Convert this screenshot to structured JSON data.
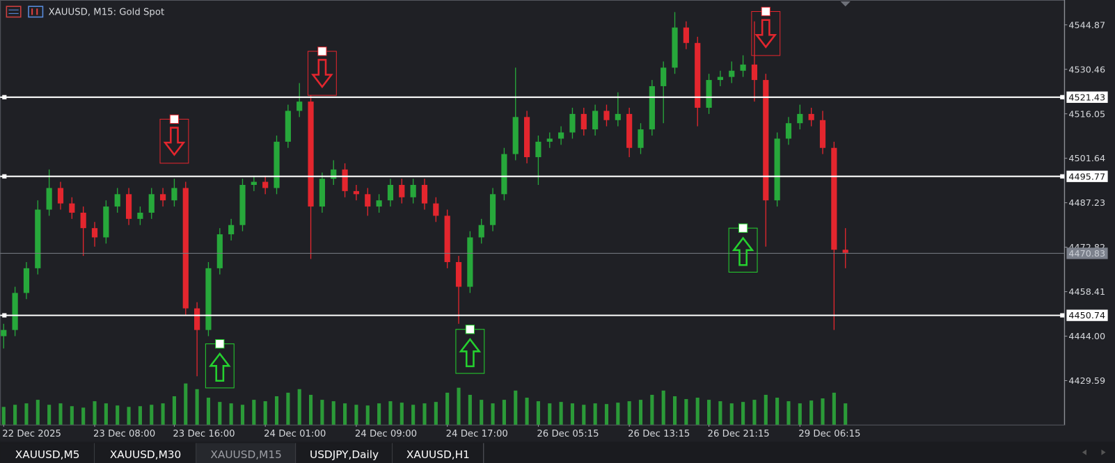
{
  "chart_data": {
    "type": "candlestick",
    "title": "XAUUSD, M15:  Gold Spot",
    "categories": [
      "22 Dec 2025",
      null,
      null,
      null,
      null,
      null,
      null,
      null,
      "23 Dec 08:00",
      null,
      null,
      null,
      null,
      null,
      null,
      "23 Dec 16:00",
      null,
      null,
      null,
      null,
      null,
      null,
      null,
      "24 Dec 01:00",
      null,
      null,
      null,
      null,
      null,
      null,
      null,
      "24 Dec 09:00",
      null,
      null,
      null,
      null,
      null,
      null,
      null,
      "24 Dec 17:00",
      null,
      null,
      null,
      null,
      null,
      null,
      null,
      "26 Dec 05:15",
      null,
      null,
      null,
      null,
      null,
      null,
      null,
      "26 Dec 13:15",
      null,
      null,
      null,
      null,
      null,
      null,
      "26 Dec 21:15",
      null,
      null,
      null,
      null,
      null,
      null,
      null,
      "29 Dec 06:15",
      null,
      null,
      null,
      null
    ],
    "open": [
      4444,
      4446,
      4458,
      4466,
      4485,
      4492,
      4487,
      4484,
      4479,
      4476,
      4486,
      4490,
      4482,
      4484,
      4490,
      4488,
      4492,
      4453,
      4446,
      4466,
      4477,
      4480,
      4493,
      4494,
      4492,
      4507,
      4517,
      4520,
      4486,
      4495,
      4498,
      4491,
      4490,
      4486,
      4488,
      4493,
      4489,
      4493,
      4487,
      4483,
      4468,
      4460,
      4476,
      4480,
      4490,
      4503,
      4515,
      4502,
      4507,
      4508,
      4510,
      4516,
      4511,
      4517,
      4514,
      4516,
      4505,
      4511,
      4525,
      4531,
      4544,
      4539,
      4518,
      4527,
      4528,
      4530,
      4532,
      4527,
      4488,
      4508,
      4513,
      4516,
      4514,
      4505,
      4472
    ],
    "high": [
      4448,
      4460,
      4468,
      4488,
      4498,
      4494,
      4489,
      4486,
      4481,
      4488,
      4492,
      4492,
      4486,
      4492,
      4492,
      4495,
      4494,
      4455,
      4468,
      4479,
      4482,
      4495,
      4496,
      4496,
      4509,
      4519,
      4526,
      4522,
      4497,
      4501,
      4500,
      4493,
      4492,
      4490,
      4495,
      4495,
      4495,
      4495,
      4489,
      4485,
      4470,
      4478,
      4482,
      4492,
      4505,
      4531,
      4517,
      4509,
      4510,
      4512,
      4518,
      4518,
      4519,
      4519,
      4523,
      4518,
      4513,
      4527,
      4533,
      4549,
      4546,
      4541,
      4529,
      4530,
      4533,
      4535,
      4546,
      4529,
      4510,
      4515,
      4519,
      4518,
      4517,
      4507,
      4479
    ],
    "low": [
      4440,
      4444,
      4456,
      4464,
      4483,
      4485,
      4482,
      4470,
      4473,
      4474,
      4484,
      4480,
      4480,
      4482,
      4486,
      4486,
      4451,
      4431,
      4444,
      4464,
      4475,
      4478,
      4491,
      4490,
      4490,
      4505,
      4515,
      4469,
      4484,
      4493,
      4489,
      4488,
      4483,
      4484,
      4486,
      4487,
      4487,
      4485,
      4481,
      4466,
      4448,
      4458,
      4474,
      4478,
      4488,
      4501,
      4500,
      4493,
      4505,
      4506,
      4508,
      4509,
      4509,
      4512,
      4512,
      4502,
      4503,
      4509,
      4513,
      4529,
      4537,
      4512,
      4516,
      4525,
      4526,
      4528,
      4520,
      4473,
      4486,
      4506,
      4511,
      4512,
      4503,
      4446,
      4466
    ],
    "close": [
      4446,
      4458,
      4466,
      4485,
      4492,
      4487,
      4484,
      4479,
      4476,
      4486,
      4490,
      4482,
      4484,
      4490,
      4488,
      4492,
      4453,
      4446,
      4466,
      4477,
      4480,
      4493,
      4494,
      4492,
      4507,
      4517,
      4520,
      4486,
      4495,
      4498,
      4491,
      4490,
      4486,
      4488,
      4493,
      4489,
      4493,
      4487,
      4483,
      4468,
      4460,
      4476,
      4480,
      4490,
      4503,
      4515,
      4502,
      4507,
      4508,
      4510,
      4516,
      4511,
      4517,
      4514,
      4516,
      4505,
      4511,
      4525,
      4531,
      4544,
      4539,
      4518,
      4527,
      4528,
      4530,
      4532,
      4527,
      4488,
      4508,
      4513,
      4516,
      4514,
      4505,
      4472,
      4471
    ],
    "volume": [
      25,
      28,
      30,
      35,
      28,
      30,
      26,
      24,
      33,
      30,
      27,
      25,
      26,
      28,
      30,
      40,
      58,
      50,
      38,
      32,
      30,
      28,
      35,
      33,
      40,
      45,
      50,
      42,
      35,
      33,
      30,
      28,
      27,
      30,
      33,
      31,
      28,
      30,
      32,
      45,
      52,
      42,
      35,
      30,
      35,
      48,
      38,
      33,
      30,
      32,
      30,
      28,
      30,
      29,
      31,
      33,
      35,
      42,
      48,
      40,
      36,
      38,
      35,
      33,
      30,
      32,
      35,
      42,
      38,
      33,
      30,
      34,
      37,
      45,
      30
    ],
    "up_color": "#27a83b",
    "down_color": "#e3262e",
    "volume_color": "#2b9a38",
    "ylim": [
      4415.32,
      4552.92
    ],
    "yticks": [
      4544.87,
      4530.46,
      4516.05,
      4501.64,
      4487.23,
      4472.82,
      4458.41,
      {
        "value": 4444,
        "label": "4444.00"
      },
      4429.59
    ],
    "grid": false,
    "levels": [
      4521.43,
      4495.77,
      4450.74
    ],
    "current_price": 4470.83,
    "down_arrows": [
      {
        "index": 15,
        "price": 4514.3
      },
      {
        "index": 28,
        "price": 4536.3
      },
      {
        "index": 67,
        "price": 4549.2
      }
    ],
    "up_arrows": [
      {
        "index": 19,
        "price": 4441.5
      },
      {
        "index": 41,
        "price": 4446.2
      },
      {
        "index": 65,
        "price": 4479
      }
    ]
  },
  "tabs": [
    "XAUUSD,M5",
    "XAUUSD,M30",
    "XAUUSD,M15",
    "USDJPY,Daily",
    "XAUUSD,H1"
  ],
  "active_tab": 2
}
